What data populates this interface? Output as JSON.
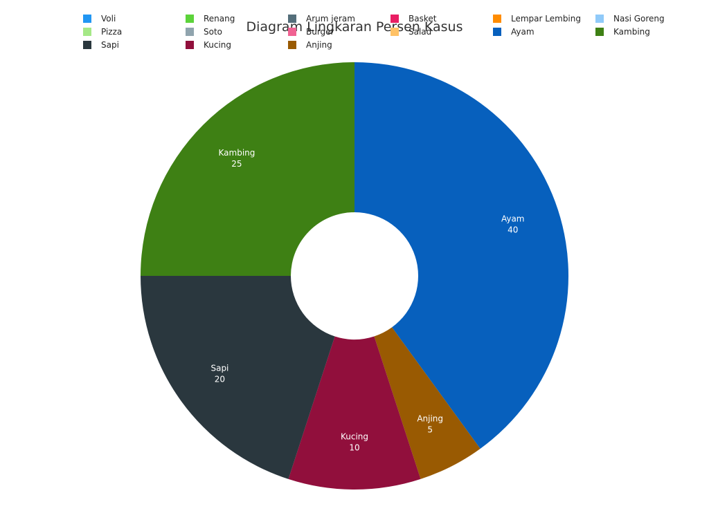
{
  "chart_data": {
    "type": "pie",
    "title": "Diagram Lingkaran Persen Kasus",
    "donut": true,
    "legend_position": "top",
    "legend": [
      {
        "name": "Voli",
        "color": "#2196F3"
      },
      {
        "name": "Renang",
        "color": "#5CD33A"
      },
      {
        "name": "Arum jeram",
        "color": "#546E7A"
      },
      {
        "name": "Basket",
        "color": "#E91E63"
      },
      {
        "name": "Lempar Lembing",
        "color": "#FF8C00"
      },
      {
        "name": "Nasi Goreng",
        "color": "#90CAF9"
      },
      {
        "name": "Pizza",
        "color": "#A5E887"
      },
      {
        "name": "Soto",
        "color": "#90A4AE"
      },
      {
        "name": "Burger",
        "color": "#F06292"
      },
      {
        "name": "Salad",
        "color": "#FFC266"
      },
      {
        "name": "Ayam",
        "color": "#0760BD"
      },
      {
        "name": "Kambing",
        "color": "#3E8014"
      },
      {
        "name": "Sapi",
        "color": "#2A373E"
      },
      {
        "name": "Kucing",
        "color": "#910F3C"
      },
      {
        "name": "Anjing",
        "color": "#995A02"
      }
    ],
    "slices": [
      {
        "name": "Ayam",
        "value": 40,
        "color": "#0760BD"
      },
      {
        "name": "Anjing",
        "value": 5,
        "color": "#995A02"
      },
      {
        "name": "Kucing",
        "value": 10,
        "color": "#910F3C"
      },
      {
        "name": "Sapi",
        "value": 20,
        "color": "#2A373E"
      },
      {
        "name": "Kambing",
        "value": 25,
        "color": "#3E8014"
      }
    ]
  }
}
